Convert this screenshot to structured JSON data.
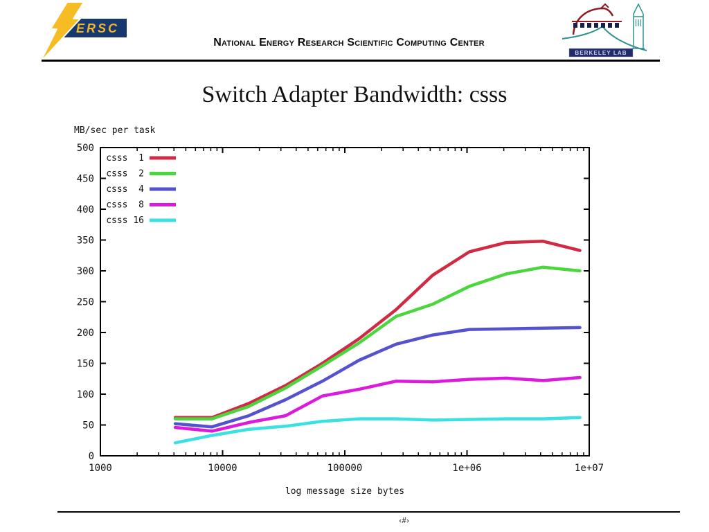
{
  "header": {
    "org_full_name": "National Energy Research Scientific Computing Center",
    "nersc_logo_text": "ERSC",
    "berkeley_logo_text": "BERKELEY LAB"
  },
  "slide": {
    "title": "Switch Adapter Bandwidth: csss",
    "footer_slide_number": "‹#›"
  },
  "chart_data": {
    "type": "line",
    "x_scale": "log10",
    "x_label": "log message size bytes",
    "y_axis_title": "MB/sec per task",
    "x_range": [
      1000,
      10000000
    ],
    "y_range": [
      0,
      500
    ],
    "y_tick_step": 50,
    "x_major_tick_labels": [
      "1000",
      "10000",
      "100000",
      "1e+06",
      "1e+07"
    ],
    "grid": false,
    "legend_position": "top-left",
    "x": [
      4096,
      8192,
      16384,
      32768,
      65536,
      131072,
      262144,
      524288,
      1048576,
      2097152,
      4194304,
      8388608
    ],
    "series": [
      {
        "name": "csss  1",
        "color": "#d02a45",
        "values": [
          62,
          62,
          85,
          114,
          150,
          190,
          237,
          293,
          331,
          346,
          348,
          333
        ]
      },
      {
        "name": "csss  2",
        "color": "#4cd63e",
        "values": [
          60,
          60,
          80,
          110,
          146,
          183,
          226,
          246,
          275,
          295,
          306,
          300
        ]
      },
      {
        "name": "csss  4",
        "color": "#5452cf",
        "values": [
          52,
          47,
          65,
          91,
          121,
          155,
          181,
          196,
          205,
          206,
          207,
          208
        ]
      },
      {
        "name": "csss  8",
        "color": "#dc1add",
        "values": [
          46,
          40,
          54,
          65,
          97,
          108,
          121,
          120,
          124,
          126,
          122,
          127
        ]
      },
      {
        "name": "csss 16",
        "color": "#3ae0e2",
        "values": [
          21,
          33,
          43,
          48,
          56,
          60,
          60,
          58,
          59,
          60,
          60,
          62
        ]
      }
    ]
  }
}
